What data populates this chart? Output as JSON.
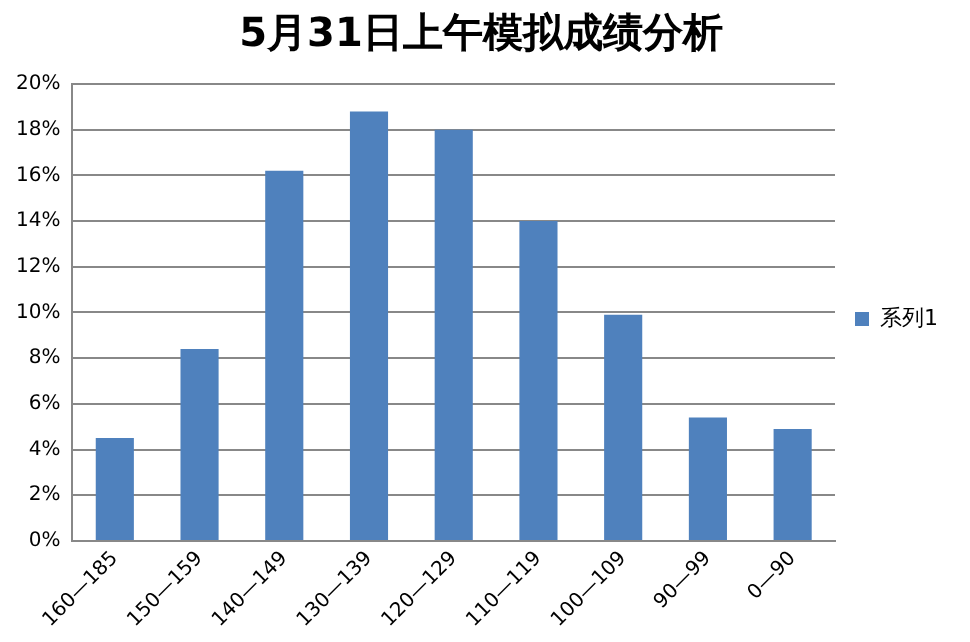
{
  "chart_data": {
    "type": "bar",
    "title": "5月31日上午模拟成绩分析",
    "categories": [
      "160—185",
      "150—159",
      "140—149",
      "130—139",
      "120—129",
      "110—119",
      "100—109",
      "90—99",
      "0—90"
    ],
    "series": [
      {
        "name": "系列1",
        "color": "#4f81bd",
        "values": [
          4.5,
          8.4,
          16.2,
          18.8,
          18.0,
          14.0,
          9.9,
          5.4,
          4.9
        ]
      }
    ],
    "ylim": [
      0,
      20
    ],
    "yticks": [
      {
        "value": 0,
        "label": "0%"
      },
      {
        "value": 2,
        "label": "2%"
      },
      {
        "value": 4,
        "label": "4%"
      },
      {
        "value": 6,
        "label": "6%"
      },
      {
        "value": 8,
        "label": "8%"
      },
      {
        "value": 10,
        "label": "10%"
      },
      {
        "value": 12,
        "label": "12%"
      },
      {
        "value": 14,
        "label": "14%"
      },
      {
        "value": 16,
        "label": "16%"
      },
      {
        "value": 18,
        "label": "18%"
      },
      {
        "value": 20,
        "label": "20%"
      }
    ],
    "grid": "y",
    "legend": "right"
  }
}
